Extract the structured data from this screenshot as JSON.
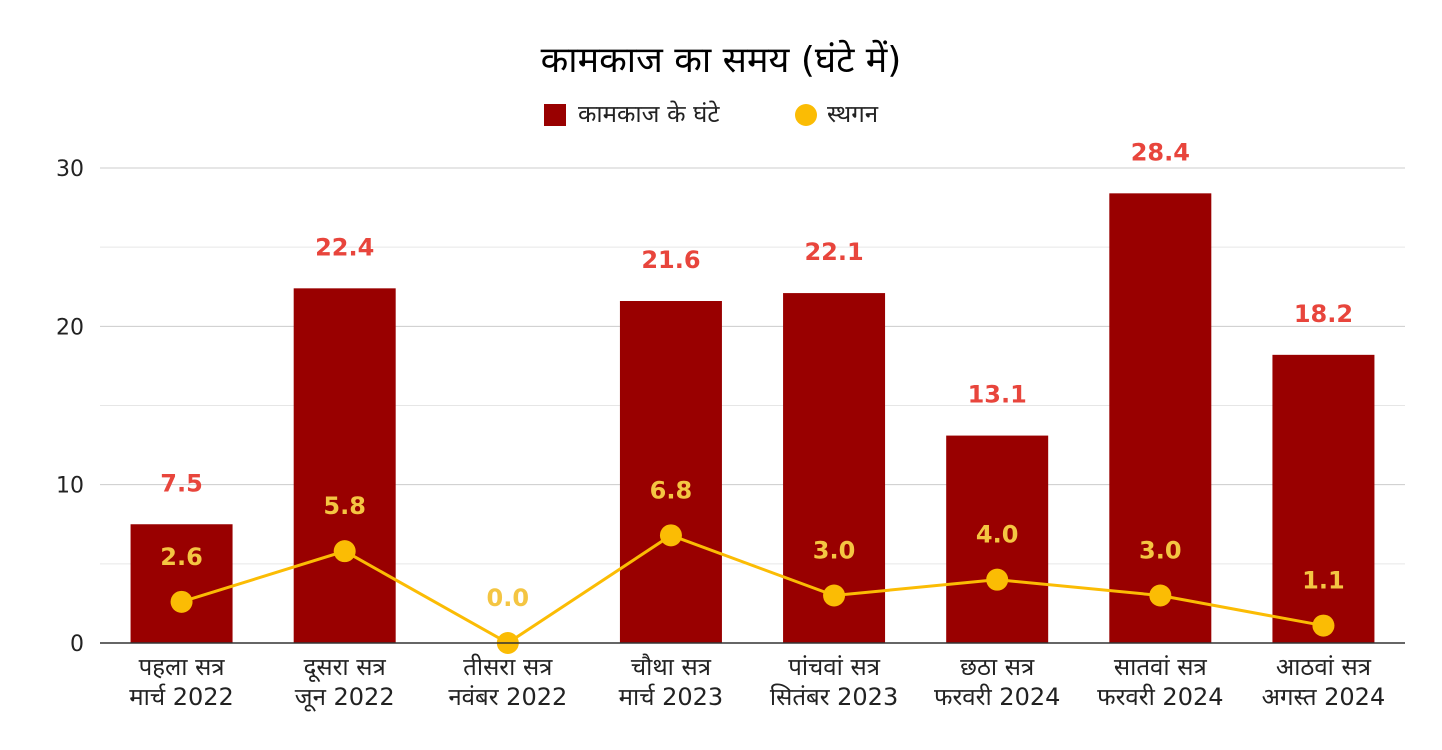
{
  "chart_data": {
    "type": "bar",
    "title": "कामकाज का समय (घंटे में)",
    "categories": [
      [
        "पहला सत्र",
        "मार्च 2022"
      ],
      [
        "दूसरा सत्र",
        "जून 2022"
      ],
      [
        "तीसरा सत्र",
        "नवंबर 2022"
      ],
      [
        "चौथा सत्र",
        "मार्च 2023"
      ],
      [
        "पांचवां सत्र",
        "सितंबर 2023"
      ],
      [
        "छठा सत्र",
        "फरवरी 2024"
      ],
      [
        "सातवां सत्र",
        "फरवरी 2024"
      ],
      [
        "आठवां सत्र",
        "अगस्त 2024"
      ]
    ],
    "series": [
      {
        "name": "कामकाज के घंटे",
        "type": "bar",
        "color": "#990000",
        "label_color": "#e8453c",
        "values": [
          7.5,
          22.4,
          0.0,
          21.6,
          22.1,
          13.1,
          28.4,
          18.2
        ],
        "labels": [
          "7.5",
          "22.4",
          "",
          "21.6",
          "22.1",
          "13.1",
          "28.4",
          "18.2"
        ]
      },
      {
        "name": "स्थगन",
        "type": "line",
        "color": "#fbbc04",
        "label_color": "#f4c542",
        "values": [
          2.6,
          5.8,
          0.0,
          6.8,
          3.0,
          4.0,
          3.0,
          1.1
        ],
        "labels": [
          "2.6",
          "5.8",
          "0.0",
          "6.8",
          "3.0",
          "4.0",
          "3.0",
          "1.1"
        ]
      }
    ],
    "ylim": [
      0,
      30
    ],
    "yticks": [
      "0",
      "10",
      "20",
      "30"
    ],
    "grid": true,
    "legend": "top-center"
  }
}
